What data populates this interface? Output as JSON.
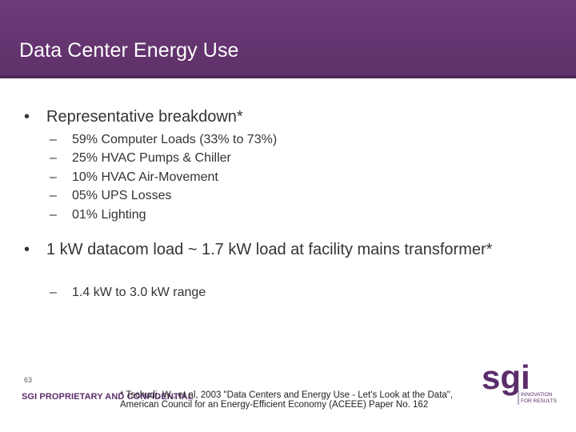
{
  "slide": {
    "title": "Data Center Energy Use",
    "bullets": [
      {
        "marker": "•",
        "text": "Representative breakdown*",
        "subitems": [
          "59% Computer Loads (33% to 73%)",
          "25% HVAC Pumps & Chiller",
          "10% HVAC Air-Movement",
          "05% UPS Losses",
          "01% Lighting"
        ]
      },
      {
        "marker": "•",
        "text": "1 kW datacom load ~ 1.7 kW load at facility mains transformer*",
        "subitems": [
          "1.4 kW to 3.0 kW range"
        ]
      }
    ],
    "sub_marker": "–"
  },
  "footer": {
    "page_number": "63",
    "proprietary": "SGI PROPRIETARY AND CONFIDENTIAL",
    "citation_line1": "* Tschudi, W., et al, 2003 \"Data Centers and Energy Use - Let's Look at the Data\",",
    "citation_line2": "American Council for an Energy-Efficient Economy (ACEEE) Paper No. 162"
  },
  "logo": {
    "wordmark": "sgi",
    "tagline_line1": "INNOVATION",
    "tagline_line2": "FOR RESULTS",
    "color": "#5b2d6b"
  },
  "colors": {
    "title_bar": "#6d3b79",
    "text": "#333333",
    "accent": "#5b2d6b"
  }
}
